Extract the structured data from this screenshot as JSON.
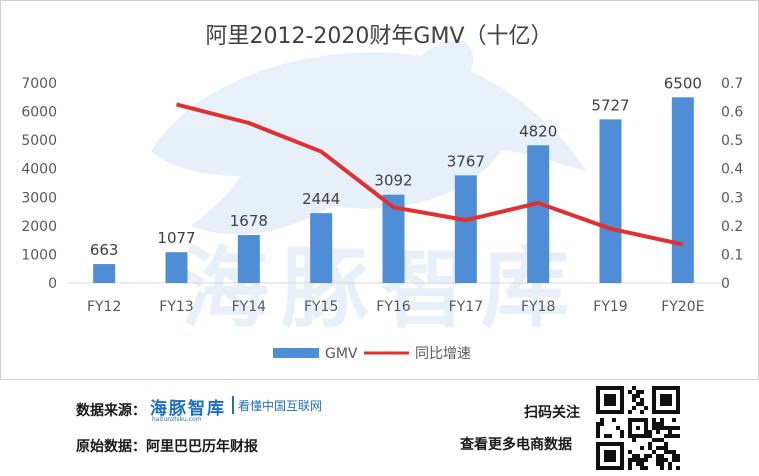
{
  "chart_data": {
    "type": "bar+line",
    "title": "阿里2012-2020财年GMV（十亿）",
    "categories": [
      "FY12",
      "FY13",
      "FY14",
      "FY15",
      "FY16",
      "FY17",
      "FY18",
      "FY19",
      "FY20E"
    ],
    "series": [
      {
        "name": "GMV",
        "type": "bar",
        "axis": "left",
        "color": "#4f8ed6",
        "values": [
          663,
          1077,
          1678,
          2444,
          3092,
          3767,
          4820,
          5727,
          6500
        ]
      },
      {
        "name": "同比增速",
        "type": "line",
        "axis": "right",
        "color": "#e03030",
        "values": [
          null,
          0.625,
          0.56,
          0.46,
          0.265,
          0.22,
          0.28,
          0.19,
          0.135
        ]
      }
    ],
    "data_labels": [
      "663",
      "1077",
      "1678",
      "2444",
      "3092",
      "3767",
      "4820",
      "5727",
      "6500"
    ],
    "y_left": {
      "min": 0,
      "max": 7000,
      "step": 1000,
      "ticks": [
        "0",
        "1000",
        "2000",
        "3000",
        "4000",
        "5000",
        "6000",
        "7000"
      ]
    },
    "y_right": {
      "min": 0,
      "max": 0.7,
      "step": 0.1,
      "ticks": [
        "0",
        "0.1",
        "0.2",
        "0.3",
        "0.4",
        "0.5",
        "0.6",
        "0.7"
      ]
    },
    "grid": false,
    "legend_position": "bottom",
    "watermark_text": "海豚智库"
  },
  "footer": {
    "source_label": "数据来源：",
    "logo_name": "海豚智库",
    "logo_subtitle": "haitunzhiku.com",
    "logo_slogan": "看懂中国互联网",
    "raw_label": "原始数据：阿里巴巴历年财报",
    "scan_label": "扫码关注",
    "more_label": "查看更多电商数据"
  },
  "colors": {
    "bar": "#4f8ed6",
    "line": "#e03030",
    "logo": "#1f6fc0"
  }
}
